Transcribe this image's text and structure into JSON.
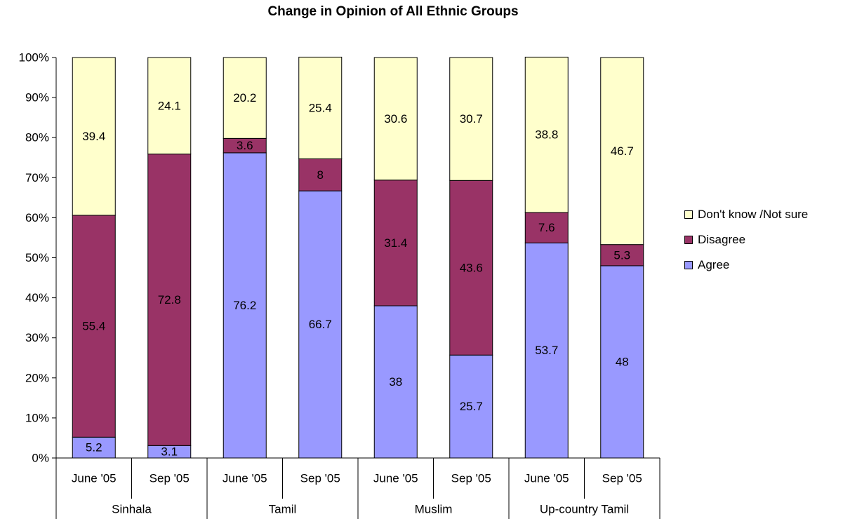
{
  "chart_data": {
    "type": "bar",
    "stacked": "percent",
    "title": "Change in Opinion  of All Ethnic Groups",
    "xlabel": "",
    "ylabel": "",
    "ylim": [
      0,
      100
    ],
    "y_ticks": [
      "0%",
      "10%",
      "20%",
      "30%",
      "40%",
      "50%",
      "60%",
      "70%",
      "80%",
      "90%",
      "100%"
    ],
    "grid": false,
    "legend_position": "right",
    "categories": [
      "June '05",
      "Sep '05",
      "June '05",
      "Sep '05",
      "June '05",
      "Sep '05",
      "June '05",
      "Sep '05"
    ],
    "groups": [
      {
        "label": "Sinhala",
        "span": 2
      },
      {
        "label": "Tamil",
        "span": 2
      },
      {
        "label": "Muslim",
        "span": 2
      },
      {
        "label": "Up-country Tamil",
        "span": 2
      }
    ],
    "series": [
      {
        "name": "Agree",
        "color": "#9999ff",
        "values": [
          5.2,
          3.1,
          76.2,
          66.7,
          38,
          25.7,
          53.7,
          48
        ]
      },
      {
        "name": "Disagree",
        "color": "#993366",
        "values": [
          55.4,
          72.8,
          3.6,
          8,
          31.4,
          43.6,
          7.6,
          5.3
        ]
      },
      {
        "name": "Don't know /Not sure",
        "color": "#ffffcc",
        "values": [
          39.4,
          24.1,
          20.2,
          25.4,
          30.6,
          30.7,
          38.8,
          46.7
        ]
      }
    ],
    "legend_order": [
      2,
      1,
      0
    ]
  }
}
